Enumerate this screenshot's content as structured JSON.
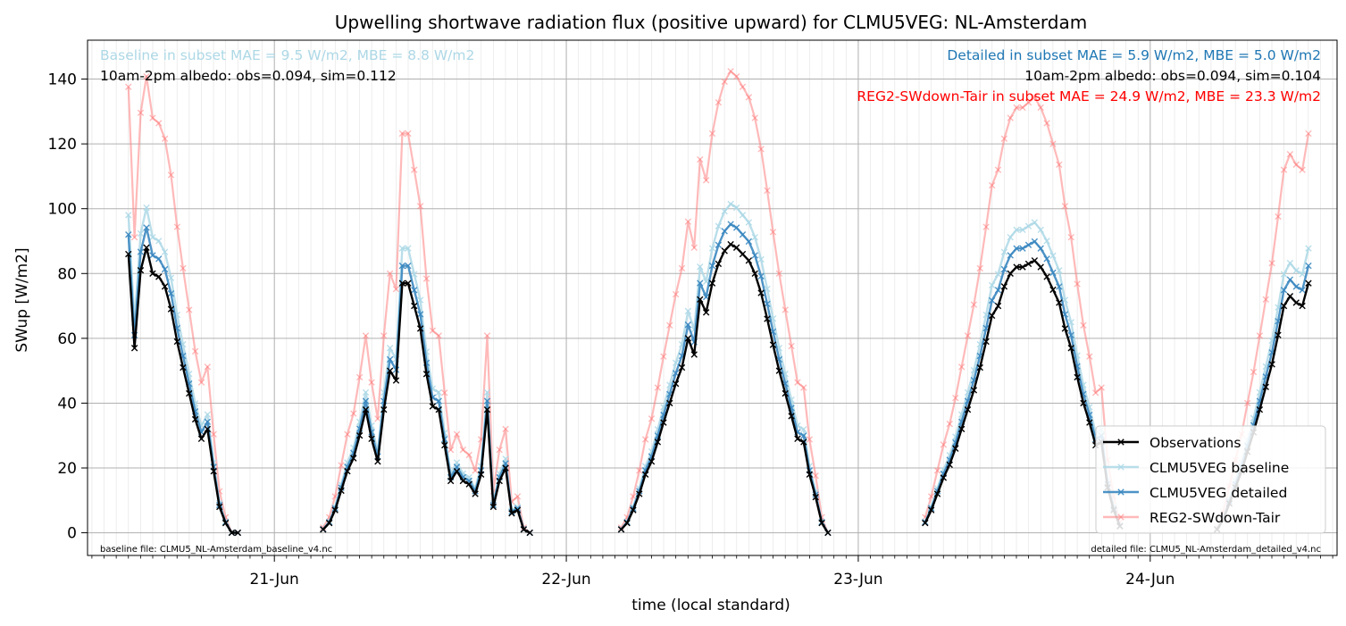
{
  "chart_data": {
    "type": "line",
    "title": "Upwelling shortwave radiation flux (positive upward) for CLMU5VEG: NL-Amsterdam",
    "xlabel": "time (local standard)",
    "ylabel": "SWup [W/m2]",
    "ylim": [
      -7,
      152
    ],
    "xlim": [
      -0.64,
      3.64
    ],
    "x_units": "days relative to 21-Jun 00:00 (local standard)",
    "x_ticks": [
      {
        "value": 0,
        "label": "21-Jun"
      },
      {
        "value": 1,
        "label": "22-Jun"
      },
      {
        "value": 2,
        "label": "23-Jun"
      },
      {
        "value": 3,
        "label": "24-Jun"
      }
    ],
    "y_ticks": [
      0,
      20,
      40,
      60,
      80,
      100,
      120,
      140
    ],
    "grid": true,
    "legend_position": "lower-right",
    "annotations": {
      "baseline_stats": "Baseline in subset MAE = 9.5 W/m2, MBE = 8.8 W/m2",
      "baseline_albedo": "10am-2pm albedo: obs=0.094, sim=0.112",
      "detailed_stats": "Detailed in subset MAE = 5.9 W/m2, MBE = 5.0 W/m2",
      "detailed_albedo": "10am-2pm albedo: obs=0.094, sim=0.104",
      "reg2_stats": "REG2-SWdown-Tair in subset MAE = 24.9 W/m2, MBE = 23.3 W/m2",
      "baseline_file": "baseline file: CLMU5_NL-Amsterdam_baseline_v4.nc",
      "detailed_file": "detailed file: CLMU5_NL-Amsterdam_detailed_v4.nc"
    },
    "annotation_colors": {
      "baseline_stats": "#add8e6",
      "detailed_stats": "#1f77b4",
      "reg2_stats": "#ff0000"
    },
    "series": [
      {
        "name": "Observations",
        "color": "#000000",
        "marker": "x",
        "segments": [
          {
            "x": [
              -0.5,
              -0.479,
              -0.458,
              -0.438,
              -0.417,
              -0.396,
              -0.375,
              -0.354,
              -0.333,
              -0.313,
              -0.292,
              -0.271,
              -0.25,
              -0.229,
              -0.208,
              -0.188,
              -0.167,
              -0.146,
              -0.125
            ],
            "y": [
              86,
              57,
              81,
              88,
              80,
              79,
              76,
              69,
              59,
              51,
              43,
              35,
              29,
              32,
              19,
              8,
              3,
              0,
              0
            ]
          }
        ],
        "segments_2": [
          {
            "x": [
              0.167,
              0.188,
              0.208,
              0.229,
              0.25,
              0.271,
              0.292,
              0.313,
              0.333,
              0.354,
              0.375,
              0.396,
              0.417,
              0.438,
              0.458,
              0.479,
              0.5,
              0.521,
              0.542,
              0.563,
              0.583,
              0.604,
              0.625,
              0.646,
              0.667,
              0.688,
              0.708,
              0.729,
              0.75,
              0.771,
              0.792,
              0.813,
              0.833,
              0.854,
              0.875
            ],
            "y": [
              1,
              3,
              7,
              13,
              19,
              23,
              30,
              38,
              29,
              22,
              38,
              50,
              47,
              77,
              77,
              70,
              63,
              49,
              39,
              38,
              27,
              16,
              19,
              16,
              15,
              12,
              18,
              38,
              8,
              16,
              20,
              6,
              7,
              1,
              0
            ]
          }
        ],
        "segments_3": [
          {
            "x": [
              1.188,
              1.208,
              1.229,
              1.25,
              1.271,
              1.292,
              1.313,
              1.333,
              1.354,
              1.375,
              1.396,
              1.417,
              1.438,
              1.458,
              1.479,
              1.5,
              1.521,
              1.542,
              1.563,
              1.583,
              1.604,
              1.625,
              1.646,
              1.667,
              1.688,
              1.708,
              1.729,
              1.75,
              1.771,
              1.792,
              1.813,
              1.833,
              1.854,
              1.875,
              1.896
            ],
            "y": [
              1,
              3,
              7,
              12,
              18,
              22,
              28,
              34,
              40,
              46,
              51,
              60,
              55,
              72,
              68,
              77,
              83,
              87,
              89,
              88,
              86,
              84,
              80,
              74,
              66,
              58,
              50,
              43,
              36,
              29,
              28,
              18,
              11,
              3,
              0
            ]
          }
        ],
        "segments_4": [
          {
            "x": [
              2.229,
              2.25,
              2.271,
              2.292,
              2.313,
              2.333,
              2.354,
              2.375,
              2.396,
              2.417,
              2.438,
              2.458,
              2.479,
              2.5,
              2.521,
              2.542,
              2.563,
              2.583,
              2.604,
              2.625,
              2.646,
              2.667,
              2.688,
              2.708,
              2.729,
              2.75,
              2.771,
              2.792,
              2.813,
              2.833,
              2.854,
              2.875,
              2.896
            ],
            "y": [
              3,
              7,
              12,
              17,
              21,
              26,
              32,
              38,
              44,
              51,
              59,
              67,
              70,
              76,
              80,
              82,
              82,
              83,
              84,
              82,
              79,
              75,
              71,
              63,
              57,
              48,
              40,
              34,
              27,
              28,
              14,
              7,
              2
            ]
          }
        ],
        "segments_5": [
          {
            "x": [
              3.229,
              3.25,
              3.271,
              3.292,
              3.313,
              3.333,
              3.354,
              3.375,
              3.396,
              3.417,
              3.438,
              3.458,
              3.479,
              3.5,
              3.521,
              3.542
            ],
            "y": [
              1,
              4,
              9,
              14,
              19,
              25,
              31,
              38,
              45,
              52,
              61,
              70,
              73,
              71,
              70,
              77
            ]
          }
        ]
      }
    ]
  }
}
